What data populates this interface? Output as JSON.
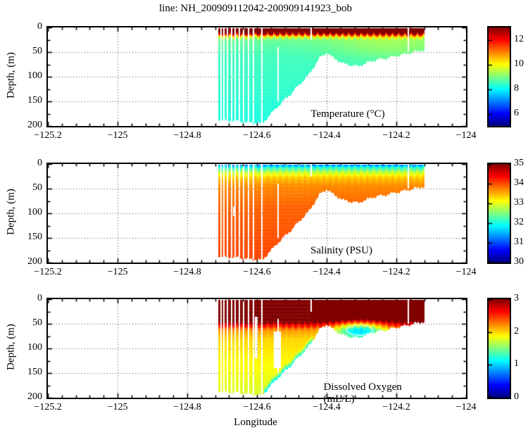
{
  "title": "line: NH_200909112042-200909141923_bob",
  "axes": {
    "xlabel": "Longitude",
    "ylabel": "Depth, (m)",
    "x_range": [
      -125.2,
      -124
    ],
    "x_major_ticks": [
      -125.2,
      -125,
      -124.8,
      -124.6,
      -124.4,
      -124.2,
      -124
    ],
    "x_tick_labels": [
      "−125.2",
      "−125",
      "−124.8",
      "−124.6",
      "−124.4",
      "−124.2",
      "−124"
    ],
    "x_minor_step": 0.04,
    "y_range": [
      0,
      200
    ],
    "y_major_ticks": [
      0,
      50,
      100,
      150,
      200
    ],
    "y_tick_labels": [
      "0",
      "50",
      "100",
      "150",
      "200"
    ],
    "y_minor_step": 25,
    "grid_style": "dotted"
  },
  "colors": {
    "background": "#ffffff",
    "axis": "#000000",
    "grid_dot": "#444444",
    "colormap": "jet"
  },
  "chart_data": [
    {
      "type": "heatmap",
      "name": "temperature",
      "label": "Temperature (°C)",
      "clim": [
        5,
        13
      ],
      "colorbar_ticks": [
        6,
        8,
        10,
        12
      ],
      "colorbar_tick_labels": [
        "6",
        "8",
        "10",
        "12"
      ],
      "x_extent": [
        -124.712,
        -124.12
      ],
      "top_depth": 1.8,
      "bottom_profile": [
        [
          -124.712,
          185
        ],
        [
          -124.7,
          188
        ],
        [
          -124.66,
          190
        ],
        [
          -124.62,
          193
        ],
        [
          -124.585,
          195
        ],
        [
          -124.54,
          160
        ],
        [
          -124.5,
          133
        ],
        [
          -124.45,
          95
        ],
        [
          -124.42,
          62
        ],
        [
          -124.4,
          51
        ],
        [
          -124.385,
          60
        ],
        [
          -124.35,
          74
        ],
        [
          -124.31,
          79
        ],
        [
          -124.27,
          68
        ],
        [
          -124.22,
          61
        ],
        [
          -124.18,
          55
        ],
        [
          -124.15,
          50
        ],
        [
          -124.12,
          46
        ]
      ],
      "depth_value_profile": [
        [
          0,
          13.3
        ],
        [
          11,
          13.3
        ],
        [
          14,
          12.0
        ],
        [
          17,
          10.5
        ],
        [
          21,
          9.4
        ],
        [
          26,
          8.8
        ],
        [
          60,
          8.5
        ],
        [
          120,
          8.4
        ],
        [
          200,
          8.2
        ]
      ],
      "anomalies": [
        {
          "lon": -124.22,
          "depth": 35,
          "rlon": 0.12,
          "rdepth": 25,
          "delta": 0.5
        }
      ]
    },
    {
      "type": "heatmap",
      "name": "salinity",
      "label": "Salinity (PSU)",
      "clim": [
        30,
        35
      ],
      "colorbar_ticks": [
        30,
        31,
        32,
        33,
        34,
        35
      ],
      "colorbar_tick_labels": [
        "30",
        "31",
        "32",
        "33",
        "34",
        "35"
      ],
      "depth_value_profile": [
        [
          0,
          31.0
        ],
        [
          5,
          31.8
        ],
        [
          10,
          32.3
        ],
        [
          18,
          32.9
        ],
        [
          28,
          33.4
        ],
        [
          45,
          33.7
        ],
        [
          90,
          33.9
        ],
        [
          200,
          34.05
        ]
      ],
      "anomalies": []
    },
    {
      "type": "heatmap",
      "name": "dissolved_oxygen",
      "label": "Dissolved Oxygen (mL/L)",
      "clim": [
        0,
        3
      ],
      "colorbar_ticks": [
        0,
        1,
        2,
        3
      ],
      "colorbar_tick_labels": [
        "0",
        "1",
        "2",
        "3"
      ],
      "depth_value_profile": [
        [
          0,
          3.4
        ],
        [
          40,
          3.4
        ],
        [
          50,
          2.8
        ],
        [
          62,
          2.2
        ],
        [
          80,
          2.0
        ],
        [
          120,
          1.9
        ],
        [
          200,
          1.75
        ]
      ],
      "anomalies": [
        {
          "lon": -124.305,
          "depth": 63,
          "rlon": 0.05,
          "rdepth": 14,
          "delta": -1.15,
          "contour": true
        }
      ],
      "bottom_fringe": {
        "lon_range": [
          -124.58,
          -124.44
        ],
        "thickness": 13,
        "delta": -0.75
      }
    }
  ],
  "gaps": {
    "full_stripes": [
      -124.703,
      -124.694,
      -124.684,
      -124.673,
      -124.662,
      -124.65,
      -124.638,
      -124.625,
      -124.61,
      -124.585
    ],
    "partial_stripes": [
      {
        "lon": -124.54,
        "d0": 40,
        "d1": 150
      },
      {
        "lon": -124.445,
        "d0": 0,
        "d1": 25
      },
      {
        "lon": -124.165,
        "d0": 0,
        "d1": 50
      }
    ],
    "patches": [
      {
        "panel": "dissolved_oxygen",
        "lon_range": [
          -124.552,
          -124.532
        ],
        "depth_range": [
          65,
          140
        ]
      },
      {
        "panel": "dissolved_oxygen",
        "lon_range": [
          -124.607,
          -124.597
        ],
        "depth_range": [
          35,
          120
        ]
      },
      {
        "panel": "salinity",
        "lon_range": [
          -124.668,
          -124.66
        ],
        "depth_range": [
          85,
          105
        ]
      }
    ]
  }
}
